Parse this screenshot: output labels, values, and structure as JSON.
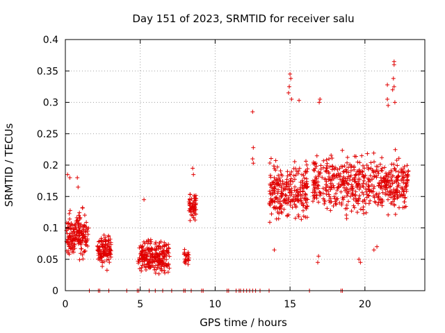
{
  "chart_data": {
    "type": "scatter",
    "title": "Day 151 of 2023, SRMTID for receiver salu",
    "xlabel": "GPS time / hours",
    "ylabel": "SRMTID / TECUs",
    "xlim": [
      0,
      24
    ],
    "ylim": [
      0,
      0.4
    ],
    "xticks": [
      0,
      5,
      10,
      15,
      20
    ],
    "yticks": [
      0,
      0.05,
      0.1,
      0.15,
      0.2,
      0.25,
      0.3,
      0.35,
      0.4
    ],
    "xtick_labels": [
      "0",
      "5",
      "10",
      "15",
      "20"
    ],
    "ytick_labels": [
      "0",
      "0.05",
      "0.1",
      "0.15",
      "0.2",
      "0.25",
      "0.3",
      "0.35",
      "0.4"
    ],
    "grid": true,
    "marker": "+",
    "color": "#e00000",
    "zero_points_x": [
      1.6,
      2.2,
      2.3,
      2.9,
      4.1,
      4.8,
      4.9,
      5.6,
      6.0,
      6.5,
      7.1,
      7.9,
      8.0,
      8.4,
      9.1,
      9.2,
      10.8,
      10.9,
      11.4,
      11.6,
      11.7,
      11.9,
      12.1,
      12.3,
      12.5,
      12.7,
      13.0,
      13.6,
      16.3,
      18.4,
      18.5
    ],
    "clusters": [
      {
        "x_range": [
          0.05,
          1.55
        ],
        "y_center": 0.09,
        "y_spread": 0.04,
        "count": 180
      },
      {
        "x_range": [
          2.15,
          3.05
        ],
        "y_center": 0.065,
        "y_spread": 0.03,
        "count": 110
      },
      {
        "x_range": [
          4.85,
          6.95
        ],
        "y_center": 0.055,
        "y_spread": 0.03,
        "count": 230
      },
      {
        "x_range": [
          7.9,
          8.25
        ],
        "y_center": 0.055,
        "y_spread": 0.02,
        "count": 25
      },
      {
        "x_range": [
          8.25,
          8.75
        ],
        "y_center": 0.135,
        "y_spread": 0.025,
        "count": 60
      },
      {
        "x_range": [
          13.6,
          16.2
        ],
        "y_center": 0.16,
        "y_spread": 0.05,
        "count": 260
      },
      {
        "x_range": [
          16.5,
          22.9
        ],
        "y_center": 0.17,
        "y_spread": 0.05,
        "count": 560
      }
    ],
    "points": [
      [
        0.15,
        0.185
      ],
      [
        0.3,
        0.18
      ],
      [
        0.8,
        0.18
      ],
      [
        0.85,
        0.165
      ],
      [
        5.25,
        0.145
      ],
      [
        8.5,
        0.195
      ],
      [
        8.55,
        0.185
      ],
      [
        12.5,
        0.285
      ],
      [
        12.55,
        0.228
      ],
      [
        12.5,
        0.21
      ],
      [
        12.55,
        0.203
      ],
      [
        15.0,
        0.345
      ],
      [
        15.05,
        0.338
      ],
      [
        14.95,
        0.325
      ],
      [
        14.9,
        0.315
      ],
      [
        15.1,
        0.305
      ],
      [
        15.6,
        0.303
      ],
      [
        13.95,
        0.065
      ],
      [
        17.0,
        0.305
      ],
      [
        16.95,
        0.3
      ],
      [
        16.85,
        0.045
      ],
      [
        16.9,
        0.055
      ],
      [
        19.7,
        0.045
      ],
      [
        19.6,
        0.05
      ],
      [
        20.6,
        0.065
      ],
      [
        20.8,
        0.07
      ],
      [
        21.95,
        0.365
      ],
      [
        21.95,
        0.36
      ],
      [
        21.9,
        0.338
      ],
      [
        21.95,
        0.325
      ],
      [
        21.85,
        0.32
      ],
      [
        21.5,
        0.328
      ],
      [
        22.0,
        0.3
      ],
      [
        21.5,
        0.305
      ],
      [
        21.55,
        0.295
      ]
    ]
  }
}
